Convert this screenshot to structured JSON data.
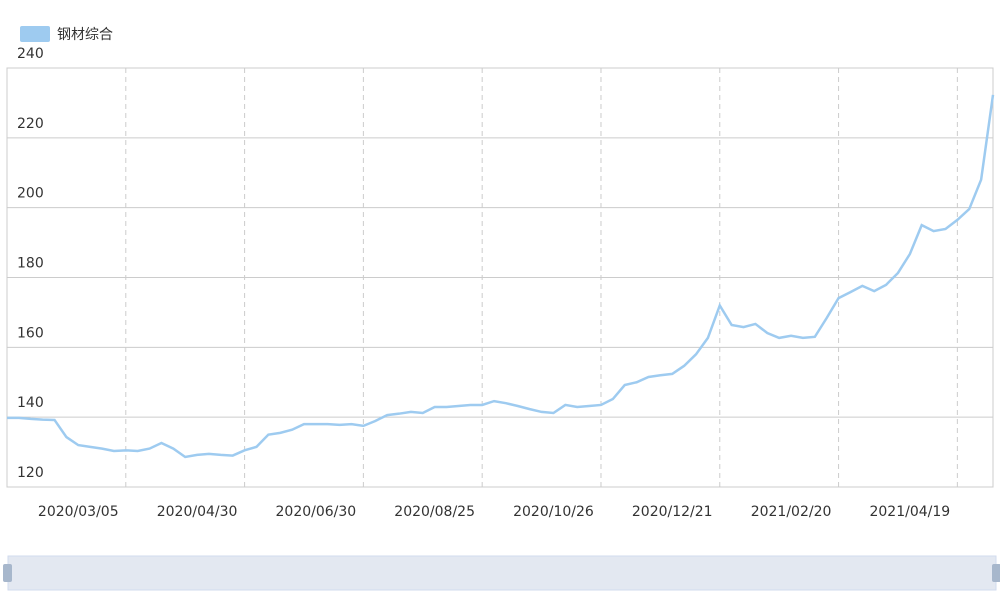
{
  "chart_data": {
    "type": "line",
    "x": [
      null,
      null,
      null,
      null,
      null,
      null,
      "2020/03/05",
      null,
      null,
      null,
      null,
      null,
      null,
      null,
      null,
      null,
      "2020/04/30",
      null,
      null,
      null,
      null,
      null,
      null,
      null,
      null,
      null,
      "2020/06/30",
      null,
      null,
      null,
      null,
      null,
      null,
      null,
      null,
      null,
      "2020/08/25",
      null,
      null,
      null,
      null,
      null,
      null,
      null,
      null,
      null,
      "2020/10/26",
      null,
      null,
      null,
      null,
      null,
      null,
      null,
      null,
      null,
      "2020/12/21",
      null,
      null,
      null,
      null,
      null,
      null,
      null,
      null,
      null,
      "2021/02/20",
      null,
      null,
      null,
      null,
      null,
      null,
      null,
      null,
      null,
      "2021/04/19",
      null,
      null,
      null,
      null,
      null,
      null,
      null
    ],
    "series": [
      {
        "name": "钢材综合",
        "color": "#9ecbf0",
        "values": [
          139.8,
          139.8,
          139.5,
          139.3,
          139.2,
          134.3,
          132,
          131.5,
          131,
          130.3,
          130.5,
          130.3,
          131,
          132.6,
          131,
          128.6,
          129.2,
          129.5,
          129.2,
          129,
          130.5,
          131.5,
          135,
          135.5,
          136.4,
          138,
          138,
          138,
          137.8,
          138,
          137.5,
          138.9,
          140.6,
          141,
          141.5,
          141.2,
          142.9,
          142.9,
          143.2,
          143.5,
          143.5,
          144.6,
          144,
          143.2,
          142.3,
          141.5,
          141.2,
          143.5,
          142.9,
          143.2,
          143.5,
          145.2,
          149.2,
          150,
          151.5,
          152,
          152.4,
          154.7,
          158,
          162.7,
          172,
          166.4,
          165.8,
          166.7,
          164.1,
          162.7,
          163.3,
          162.7,
          163,
          168.4,
          174.1,
          175.8,
          177.6,
          176.1,
          177.9,
          181.3,
          186.7,
          195,
          193.3,
          193.9,
          196.5,
          199.6,
          208,
          232.3
        ]
      }
    ],
    "ylim": [
      120,
      240
    ],
    "yticks": [
      120,
      140,
      160,
      180,
      200,
      220,
      240
    ],
    "grid": true,
    "legend": "top-left"
  }
}
